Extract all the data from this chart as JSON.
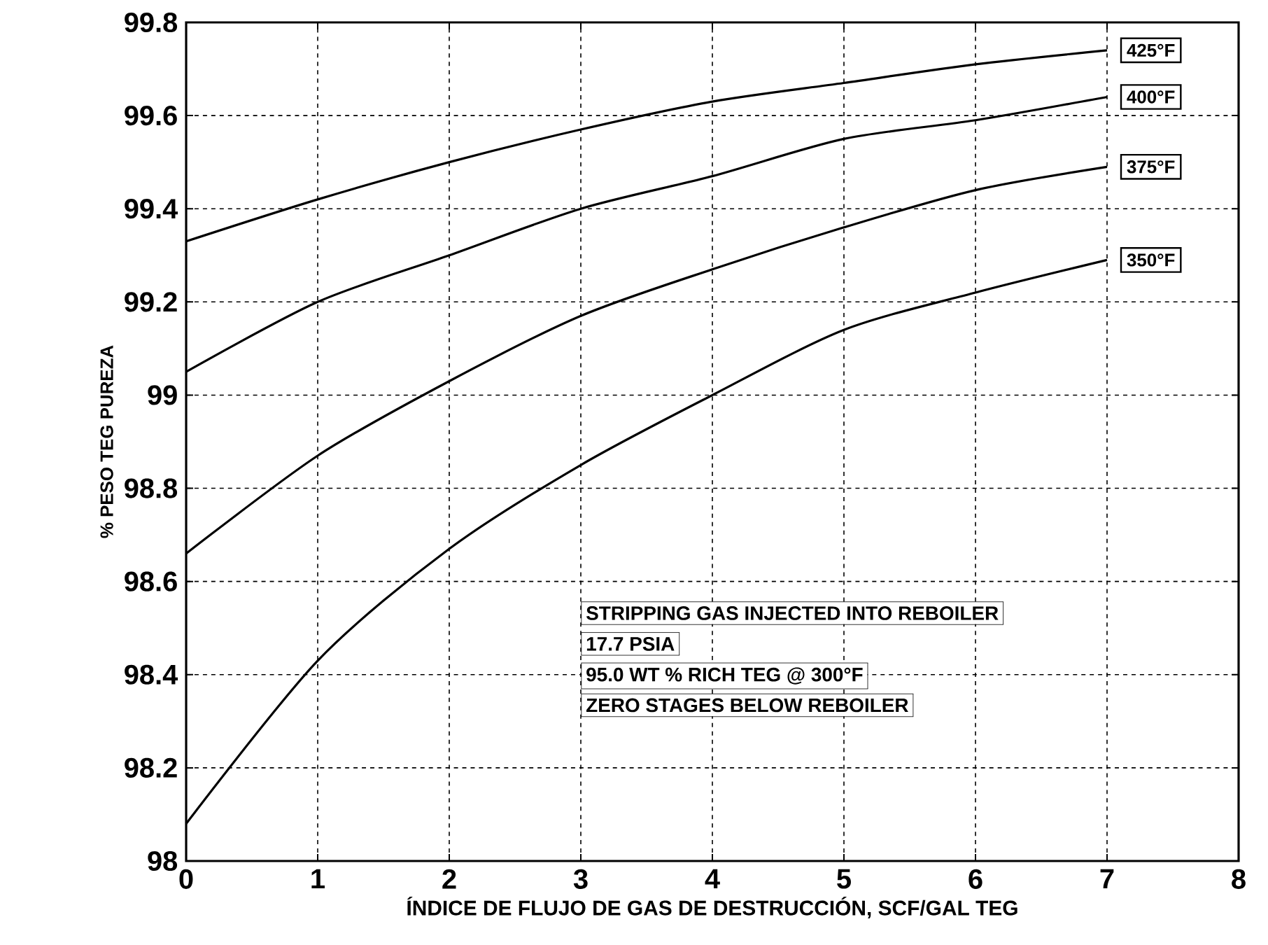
{
  "chart_data": {
    "type": "line",
    "xlabel": "ÍNDICE DE FLUJO DE GAS DE DESTRUCCIÓN, SCF/GAL TEG",
    "ylabel": "% PESO TEG PUREZA",
    "x": [
      0,
      1,
      2,
      3,
      4,
      5,
      6,
      7
    ],
    "series": [
      {
        "name": "425°F",
        "color": "#000000",
        "values": [
          99.33,
          99.42,
          99.5,
          99.57,
          99.63,
          99.67,
          99.71,
          99.74
        ]
      },
      {
        "name": "400°F",
        "color": "#000000",
        "values": [
          99.05,
          99.2,
          99.3,
          99.4,
          99.47,
          99.55,
          99.59,
          99.64
        ]
      },
      {
        "name": "375°F",
        "color": "#000000",
        "values": [
          98.66,
          98.87,
          99.03,
          99.17,
          99.27,
          99.36,
          99.44,
          99.49
        ]
      },
      {
        "name": "350°F",
        "color": "#000000",
        "values": [
          98.08,
          98.43,
          98.67,
          98.85,
          99.0,
          99.14,
          99.22,
          99.29
        ]
      }
    ],
    "xlim": [
      0,
      8
    ],
    "xticks": [
      0,
      1,
      2,
      3,
      4,
      5,
      6,
      7,
      8
    ],
    "ylim": [
      98,
      99.8
    ],
    "yticks": [
      98,
      98.2,
      98.4,
      98.6,
      98.8,
      99,
      99.2,
      99.4,
      99.6,
      99.8
    ],
    "grid": true,
    "legend": false,
    "marker": "none",
    "line_style": "solid",
    "annotations": [
      "STRIPPING GAS INJECTED INTO REBOILER",
      "17.7 PSIA",
      "95.0 WT % RICH TEG @ 300°F",
      "ZERO STAGES BELOW REBOILER"
    ]
  }
}
